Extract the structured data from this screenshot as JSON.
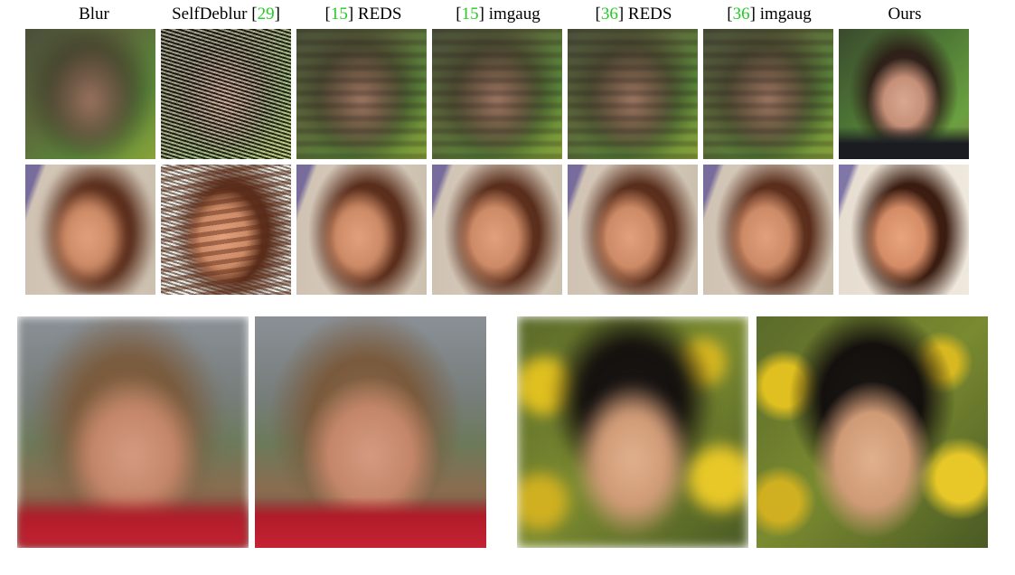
{
  "figure": {
    "column_headers": [
      {
        "ref": "",
        "label": "Blur"
      },
      {
        "label": "SelfDeblur [",
        "ref": "29",
        "suffix": "]"
      },
      {
        "prefix": "[",
        "ref": "15",
        "label": "] REDS"
      },
      {
        "prefix": "[",
        "ref": "15",
        "label": "] imgaug"
      },
      {
        "prefix": "[",
        "ref": "36",
        "label": "] REDS"
      },
      {
        "prefix": "[",
        "ref": "36",
        "label": "] imgaug"
      },
      {
        "ref": "",
        "label": "Ours"
      }
    ],
    "colors": {
      "citation": "#22cc22",
      "background": "#ffffff",
      "text": "#000000"
    }
  }
}
